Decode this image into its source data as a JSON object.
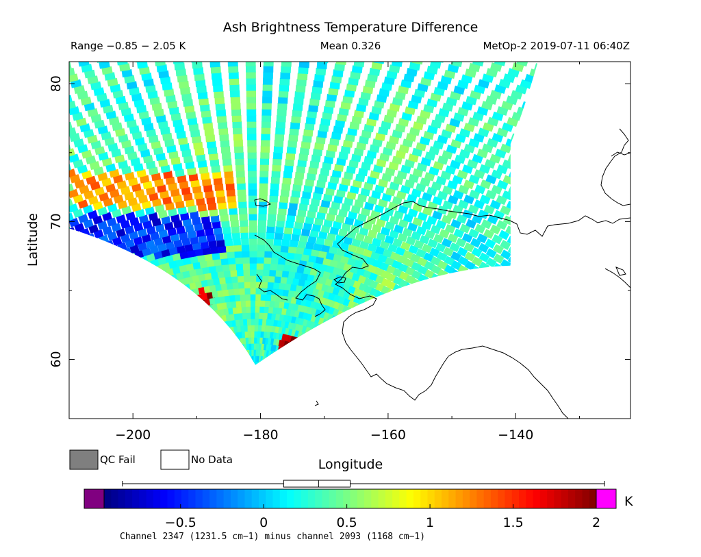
{
  "chart_data": {
    "type": "heatmap",
    "title": "Ash Brightness Temperature Difference",
    "subtitle": {
      "range": "Range −0.85 − 2.05 K",
      "mean": "Mean 0.326",
      "source": "MetOp-2 2019-07-11 06:40Z"
    },
    "xlabel": "Longitude",
    "ylabel": "Latitude",
    "xlim": [
      -210,
      -122
    ],
    "ylim": [
      55.7,
      81.6
    ],
    "xticks": [
      -200,
      -180,
      -160,
      -140
    ],
    "xtick_labels": [
      "−200",
      "−180",
      "−160",
      "−140"
    ],
    "yticks": [
      60,
      70,
      80
    ],
    "ytick_labels": [
      "60",
      "70",
      "80"
    ],
    "grid": false,
    "swath": {
      "west_edge_lat_at_lon_minus210": 69.5,
      "south_tip": [
        -180.8,
        59.6
      ],
      "east_edge_lon": -140.8,
      "east_edge_lat_range": [
        66.8,
        81.6
      ],
      "mean_value": 0.326,
      "value_range": [
        -0.85,
        2.05
      ],
      "features": [
        {
          "label": "high band",
          "lon": [
            -210,
            -184
          ],
          "lat": [
            71.0,
            73.5
          ],
          "value": 1.2
        },
        {
          "label": "low band",
          "lon": [
            -210,
            -186
          ],
          "lat": [
            67.5,
            70.5
          ],
          "value": -0.5
        },
        {
          "label": "hot spot",
          "lon": -189,
          "lat": 64.3,
          "value": 1.9
        },
        {
          "label": "hot spot",
          "lon": -175.5,
          "lat": 61.0,
          "value": 2.0
        }
      ]
    },
    "legend": {
      "qc_fail_label": "QC Fail",
      "no_data_label": "No Data",
      "qc_fail_color": "#7f7f7f",
      "no_data_color": "#ffffff"
    },
    "colorbar": {
      "range": [
        -0.96,
        2.0
      ],
      "ticks": [
        -0.5,
        0,
        0.5,
        1,
        1.5,
        2
      ],
      "tick_labels": [
        "−0.5",
        "0",
        "0.5",
        "1",
        "1.5",
        "2"
      ],
      "unit": "K",
      "caption": "Channel 2347 (1231.5 cm−1) minus channel 2093 (1168 cm−1)",
      "under_color": "#800080",
      "over_color": "#ff00ff",
      "stops": [
        "#00007f",
        "#0000ff",
        "#007fff",
        "#00ffff",
        "#7fff7f",
        "#ffff00",
        "#ff7f00",
        "#ff0000",
        "#7f0000"
      ]
    },
    "boxplot": {
      "whisker_low": -0.85,
      "q1": 0.12,
      "median": 0.33,
      "q3": 0.52,
      "whisker_high": 2.05
    }
  }
}
